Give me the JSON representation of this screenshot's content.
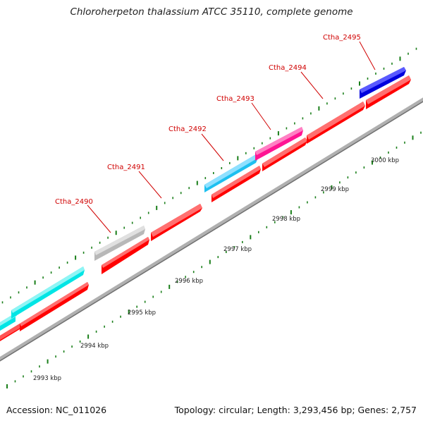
{
  "title": "Chloroherpeton thalassium ATCC 35110, complete genome",
  "footer": {
    "accession": "Accession: NC_011026",
    "summary": "Topology: circular; Length: 3,293,456 bp; Genes: 2,757"
  },
  "colors": {
    "cds_forward": "#ff0000",
    "backbone": "#888888",
    "tick": "#1a7f1a",
    "label": "#d00000"
  },
  "genes": [
    {
      "name": "Ctha_2490",
      "color": "#c0c0c0"
    },
    {
      "name": "Ctha_2491",
      "color": "#ff0000"
    },
    {
      "name": "Ctha_2492",
      "color": "#1ec0f0"
    },
    {
      "name": "Ctha_2493",
      "color": "#ff1493"
    },
    {
      "name": "Ctha_2494",
      "color": "#ff0000"
    },
    {
      "name": "Ctha_2495",
      "color": "#0000dd"
    }
  ],
  "scale_labels": [
    "2993 kbp",
    "2994 kbp",
    "2995 kbp",
    "2996 kbp",
    "2997 kbp",
    "2998 kbp",
    "2999 kbp",
    "3000 kbp"
  ]
}
